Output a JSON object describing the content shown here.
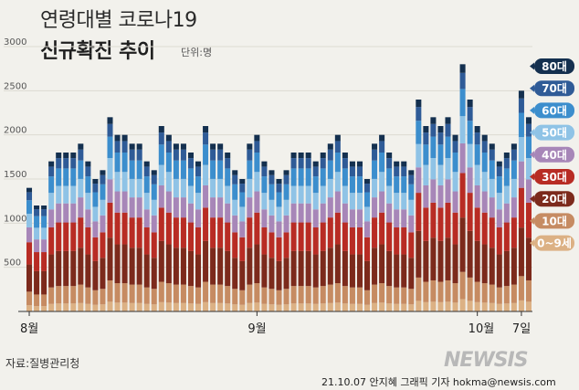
{
  "header": {
    "title_line1": "연령대별 코로나19",
    "title_line2": "신규확진 추이",
    "unit": "단위:명"
  },
  "footer": {
    "source": "자료:질병관리청",
    "credit": "21.10.07 안지혜 그래픽 기자 hokma@newsis.com",
    "logo": "NEWSIS"
  },
  "chart_data": {
    "type": "bar",
    "stacked": true,
    "title": "연령대별 코로나19 신규확진 추이",
    "unit": "단위:명",
    "ylim": [
      0,
      3300
    ],
    "yticks": [
      500,
      1000,
      1500,
      2000,
      2500,
      3000
    ],
    "xticks": [
      {
        "label": "8월",
        "index": 0
      },
      {
        "label": "9월",
        "index": 31
      },
      {
        "label": "10월",
        "index": 61
      },
      {
        "label": "7일",
        "index": 67
      }
    ],
    "legend": [
      {
        "label": "80대",
        "color": "#14304f"
      },
      {
        "label": "70대",
        "color": "#2f5b97"
      },
      {
        "label": "60대",
        "color": "#3c8ecd"
      },
      {
        "label": "50대",
        "color": "#8fc3e6"
      },
      {
        "label": "40대",
        "color": "#a786b8"
      },
      {
        "label": "30대",
        "color": "#b82c24"
      },
      {
        "label": "20대",
        "color": "#7c2a1c"
      },
      {
        "label": "10대",
        "color": "#c68b62"
      },
      {
        "label": "0~9세",
        "color": "#dcb184"
      }
    ],
    "series_order": [
      "0~9세",
      "10대",
      "20대",
      "30대",
      "40대",
      "50대",
      "60대",
      "70대",
      "80대"
    ],
    "series_colors": [
      "#dcb184",
      "#c68b62",
      "#7c2a1c",
      "#b82c24",
      "#a786b8",
      "#8fc3e6",
      "#3c8ecd",
      "#2f5b97",
      "#14304f"
    ],
    "totals": [
      1400,
      1200,
      1200,
      1700,
      1800,
      1800,
      1800,
      1900,
      1700,
      1500,
      1600,
      2200,
      2000,
      2000,
      1900,
      1900,
      1700,
      1600,
      2100,
      2000,
      1900,
      1900,
      1800,
      1700,
      2100,
      1900,
      1900,
      1800,
      1600,
      1500,
      1900,
      2000,
      1700,
      1600,
      1500,
      1600,
      1800,
      1800,
      1800,
      1700,
      1800,
      1900,
      2000,
      1800,
      1700,
      1700,
      1500,
      1900,
      2000,
      1800,
      1700,
      1700,
      1600,
      2400,
      2100,
      2200,
      2100,
      2200,
      2000,
      2800,
      2400,
      2100,
      2000,
      1900,
      1700,
      1800,
      1900,
      2500,
      2200
    ]
  }
}
